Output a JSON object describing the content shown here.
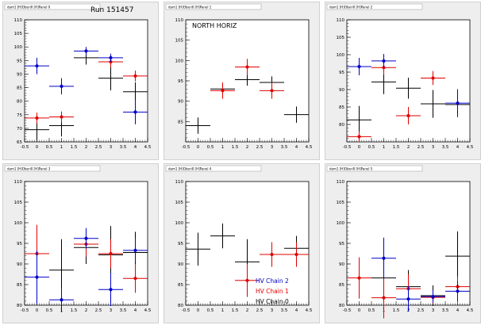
{
  "colors": {
    "chain0": "#000000",
    "chain1": "#e00000",
    "chain2": "#0000c8",
    "pad_bg": "#eeeeee",
    "frame_bg": "#ffffff"
  },
  "legend_entries": [
    {
      "label": "HV Chain 2",
      "color": "#0000c8"
    },
    {
      "label": "HV Chain 1",
      "color": "#e00000"
    },
    {
      "label": "HV Chain 0",
      "color": "#000000"
    }
  ],
  "chart_data": [
    {
      "type": "scatter",
      "pad_title": "dam1 [H]Oberi0 [H]Panel 0",
      "title": "Run 151457",
      "xlim": [
        -0.5,
        4.5
      ],
      "ylim": [
        65,
        110
      ],
      "xticks": [
        "-0.5",
        "0",
        "0.5",
        "1",
        "1.5",
        "2",
        "2.5",
        "3",
        "3.5",
        "4",
        "4.5"
      ],
      "yticks": [
        "65",
        "70",
        "75",
        "80",
        "85",
        "90",
        "95",
        "100",
        "105",
        "110"
      ],
      "grid": false,
      "series": [
        {
          "color_key": "chain0",
          "points": [
            {
              "x": 0,
              "y": 69.5,
              "xerr": 0.5,
              "yerr": 4.0
            },
            {
              "x": 1,
              "y": 71.0,
              "xerr": 0.5,
              "yerr": 4.0
            },
            {
              "x": 2,
              "y": 96.0,
              "xerr": 0.5,
              "yerr": 2.5
            },
            {
              "x": 3,
              "y": 88.5,
              "xerr": 0.5,
              "yerr": 4.5
            },
            {
              "x": 4,
              "y": 83.5,
              "xerr": 0.5,
              "yerr": 3.5
            }
          ]
        },
        {
          "color_key": "chain1",
          "points": [
            {
              "x": 0,
              "y": 73.8,
              "xerr": 0.5,
              "yerr": 2.0
            },
            {
              "x": 1,
              "y": 74.2,
              "xerr": 0.5,
              "yerr": 2.0
            },
            {
              "x": 3,
              "y": 94.5,
              "xerr": 0.5,
              "yerr": 2.0
            },
            {
              "x": 4,
              "y": 89.3,
              "xerr": 0.5,
              "yerr": 2.0
            }
          ]
        },
        {
          "color_key": "chain2",
          "points": [
            {
              "x": 0,
              "y": 93.0,
              "xerr": 0.5,
              "yerr": 3.0
            },
            {
              "x": 1,
              "y": 85.5,
              "xerr": 0.5,
              "yerr": 3.0
            },
            {
              "x": 2,
              "y": 98.5,
              "xerr": 0.5,
              "yerr": 1.5
            },
            {
              "x": 3,
              "y": 96.0,
              "xerr": 0.5,
              "yerr": 1.5
            },
            {
              "x": 4,
              "y": 76.0,
              "xerr": 0.5,
              "yerr": 4.5
            }
          ]
        }
      ]
    },
    {
      "type": "scatter",
      "pad_title": "dam1 [H]Oberi0 [H]Panel 1",
      "title": "",
      "annotation": "NORTH HORIZ",
      "xlim": [
        -0.5,
        4.5
      ],
      "ylim": [
        80,
        110
      ],
      "xticks": [
        "-0.5",
        "0",
        "0.5",
        "1",
        "1.5",
        "2",
        "2.5",
        "3",
        "3.5",
        "4",
        "4.5"
      ],
      "yticks": [
        "85",
        "90",
        "95",
        "100",
        "105",
        "110"
      ],
      "grid": false,
      "series": [
        {
          "color_key": "chain0",
          "points": [
            {
              "x": 0,
              "y": 84.0,
              "xerr": 0.5,
              "yerr": 2.0
            },
            {
              "x": 1,
              "y": 93.0,
              "xerr": 0.5,
              "yerr": 1.5
            },
            {
              "x": 2,
              "y": 95.3,
              "xerr": 0.5,
              "yerr": 1.5
            },
            {
              "x": 3,
              "y": 94.6,
              "xerr": 0.5,
              "yerr": 1.5
            },
            {
              "x": 4,
              "y": 86.7,
              "xerr": 0.5,
              "yerr": 2.0
            }
          ]
        },
        {
          "color_key": "chain1",
          "points": [
            {
              "x": 1,
              "y": 92.6,
              "xerr": 0.5,
              "yerr": 2.0
            },
            {
              "x": 2,
              "y": 98.4,
              "xerr": 0.5,
              "yerr": 2.0
            },
            {
              "x": 3,
              "y": 92.6,
              "xerr": 0.5,
              "yerr": 2.0
            }
          ]
        }
      ]
    },
    {
      "type": "scatter",
      "pad_title": "dam1 [H]Oberi0 [H]Panel 2",
      "title": "",
      "xlim": [
        -0.5,
        4.5
      ],
      "ylim": [
        75,
        110
      ],
      "xticks": [
        "-0.5",
        "0",
        "0.5",
        "1",
        "1.5",
        "2",
        "2.5",
        "3",
        "3.5",
        "4",
        "4.5"
      ],
      "yticks": [
        "80",
        "85",
        "90",
        "95",
        "100",
        "105",
        "110"
      ],
      "grid": false,
      "series": [
        {
          "color_key": "chain0",
          "points": [
            {
              "x": 0,
              "y": 81.3,
              "xerr": 0.5,
              "yerr": 4.0
            },
            {
              "x": 1,
              "y": 92.2,
              "xerr": 0.5,
              "yerr": 3.5
            },
            {
              "x": 2,
              "y": 90.4,
              "xerr": 0.5,
              "yerr": 3.0
            },
            {
              "x": 3,
              "y": 85.9,
              "xerr": 0.5,
              "yerr": 4.0
            },
            {
              "x": 4,
              "y": 85.7,
              "xerr": 0.5,
              "yerr": 3.0
            }
          ]
        },
        {
          "color_key": "chain1",
          "points": [
            {
              "x": 0,
              "y": 76.5,
              "xerr": 0.5,
              "yerr": 1.5
            },
            {
              "x": 1,
              "y": 96.3,
              "xerr": 0.5,
              "yerr": 2.0
            },
            {
              "x": 2,
              "y": 82.5,
              "xerr": 0.5,
              "yerr": 2.5
            },
            {
              "x": 3,
              "y": 93.3,
              "xerr": 0.5,
              "yerr": 2.0
            }
          ]
        },
        {
          "color_key": "chain2",
          "points": [
            {
              "x": 0,
              "y": 96.6,
              "xerr": 0.5,
              "yerr": 2.5
            },
            {
              "x": 1,
              "y": 98.2,
              "xerr": 0.5,
              "yerr": 2.0
            },
            {
              "x": 4,
              "y": 86.1,
              "xerr": 0.5,
              "yerr": 4.0
            }
          ]
        }
      ]
    },
    {
      "type": "scatter",
      "pad_title": "dam1 [H]Oberi0 [H]Panel 3",
      "title": "",
      "xlim": [
        -0.5,
        4.5
      ],
      "ylim": [
        80,
        110
      ],
      "xticks": [
        "-0.5",
        "0",
        "0.5",
        "1",
        "1.5",
        "2",
        "2.5",
        "3",
        "3.5",
        "4",
        "4.5"
      ],
      "yticks": [
        "80",
        "85",
        "90",
        "95",
        "100",
        "105",
        "110"
      ],
      "grid": false,
      "series": [
        {
          "color_key": "chain0",
          "points": [
            {
              "x": 1,
              "y": 88.5,
              "xerr": 0.5,
              "yerr": 7.5
            },
            {
              "x": 2,
              "y": 94.0,
              "xerr": 0.5,
              "yerr": 4.0
            },
            {
              "x": 3,
              "y": 92.2,
              "xerr": 0.5,
              "yerr": 7.0
            },
            {
              "x": 4,
              "y": 92.8,
              "xerr": 0.5,
              "yerr": 5.0
            }
          ]
        },
        {
          "color_key": "chain1",
          "points": [
            {
              "x": 0,
              "y": 92.5,
              "xerr": 0.5,
              "yerr": 7.0
            },
            {
              "x": 2,
              "y": 94.8,
              "xerr": 0.5,
              "yerr": 3.0
            },
            {
              "x": 3,
              "y": 92.5,
              "xerr": 0.5,
              "yerr": 3.5
            },
            {
              "x": 4,
              "y": 86.5,
              "xerr": 0.5,
              "yerr": 3.5
            }
          ]
        },
        {
          "color_key": "chain2",
          "points": [
            {
              "x": 0,
              "y": 86.8,
              "xerr": 0.5,
              "yerr": 6.5
            },
            {
              "x": 1,
              "y": 81.3,
              "xerr": 0.5,
              "yerr": 3.0
            },
            {
              "x": 2,
              "y": 96.2,
              "xerr": 0.5,
              "yerr": 2.5
            },
            {
              "x": 3,
              "y": 83.8,
              "xerr": 0.5,
              "yerr": 4.0
            },
            {
              "x": 4,
              "y": 93.3,
              "xerr": 0.5,
              "yerr": 3.0
            }
          ]
        }
      ]
    },
    {
      "type": "scatter",
      "pad_title": "dam1 [H]Oberi0 [H]Panel 4",
      "title": "",
      "xlim": [
        -0.5,
        4.5
      ],
      "ylim": [
        80,
        110
      ],
      "xticks": [
        "-0.5",
        "0",
        "0.5",
        "1",
        "1.5",
        "2",
        "2.5",
        "3",
        "3.5",
        "4",
        "4.5"
      ],
      "yticks": [
        "80",
        "85",
        "90",
        "95",
        "100",
        "105",
        "110"
      ],
      "grid": false,
      "legend": "bottom-right",
      "series": [
        {
          "color_key": "chain0",
          "points": [
            {
              "x": 0,
              "y": 93.6,
              "xerr": 0.5,
              "yerr": 4.0
            },
            {
              "x": 1,
              "y": 96.8,
              "xerr": 0.5,
              "yerr": 3.0
            },
            {
              "x": 2,
              "y": 90.5,
              "xerr": 0.5,
              "yerr": 5.5
            },
            {
              "x": 4,
              "y": 93.8,
              "xerr": 0.5,
              "yerr": 3.0
            }
          ]
        },
        {
          "color_key": "chain1",
          "points": [
            {
              "x": 2,
              "y": 86.0,
              "xerr": 0.5,
              "yerr": 4.0
            },
            {
              "x": 3,
              "y": 92.3,
              "xerr": 0.5,
              "yerr": 3.0
            },
            {
              "x": 4,
              "y": 92.3,
              "xerr": 0.5,
              "yerr": 3.0
            }
          ]
        }
      ]
    },
    {
      "type": "scatter",
      "pad_title": "dam1 [H]Oberi0 [H]Panel 5",
      "title": "",
      "xlim": [
        -0.5,
        4.5
      ],
      "ylim": [
        80,
        110
      ],
      "xticks": [
        "-0.5",
        "0",
        "0.5",
        "1",
        "1.5",
        "2",
        "2.5",
        "3",
        "3.5",
        "4",
        "4.5"
      ],
      "yticks": [
        "80",
        "85",
        "90",
        "95",
        "100",
        "105",
        "110"
      ],
      "grid": false,
      "series": [
        {
          "color_key": "chain0",
          "points": [
            {
              "x": 1,
              "y": 86.6,
              "xerr": 0.5,
              "yerr": 4.0
            },
            {
              "x": 2,
              "y": 84.5,
              "xerr": 0.5,
              "yerr": 4.0
            },
            {
              "x": 3,
              "y": 82.3,
              "xerr": 0.5,
              "yerr": 2.5
            },
            {
              "x": 4,
              "y": 91.9,
              "xerr": 0.5,
              "yerr": 6.0
            }
          ]
        },
        {
          "color_key": "chain1",
          "points": [
            {
              "x": 0,
              "y": 86.6,
              "xerr": 0.5,
              "yerr": 5.0
            },
            {
              "x": 1,
              "y": 81.8,
              "xerr": 0.5,
              "yerr": 5.0
            },
            {
              "x": 2,
              "y": 84.0,
              "xerr": 0.5,
              "yerr": 3.5
            },
            {
              "x": 3,
              "y": 81.9,
              "xerr": 0.5,
              "yerr": 1.5
            },
            {
              "x": 4,
              "y": 84.5,
              "xerr": 0.5,
              "yerr": 2.5
            }
          ]
        },
        {
          "color_key": "chain2",
          "points": [
            {
              "x": 1,
              "y": 91.4,
              "xerr": 0.5,
              "yerr": 5.0
            },
            {
              "x": 2,
              "y": 81.5,
              "xerr": 0.5,
              "yerr": 3.0
            },
            {
              "x": 3,
              "y": 82.1,
              "xerr": 0.5,
              "yerr": 1.5
            },
            {
              "x": 4,
              "y": 83.4,
              "xerr": 0.5,
              "yerr": 2.5
            }
          ]
        }
      ]
    }
  ]
}
